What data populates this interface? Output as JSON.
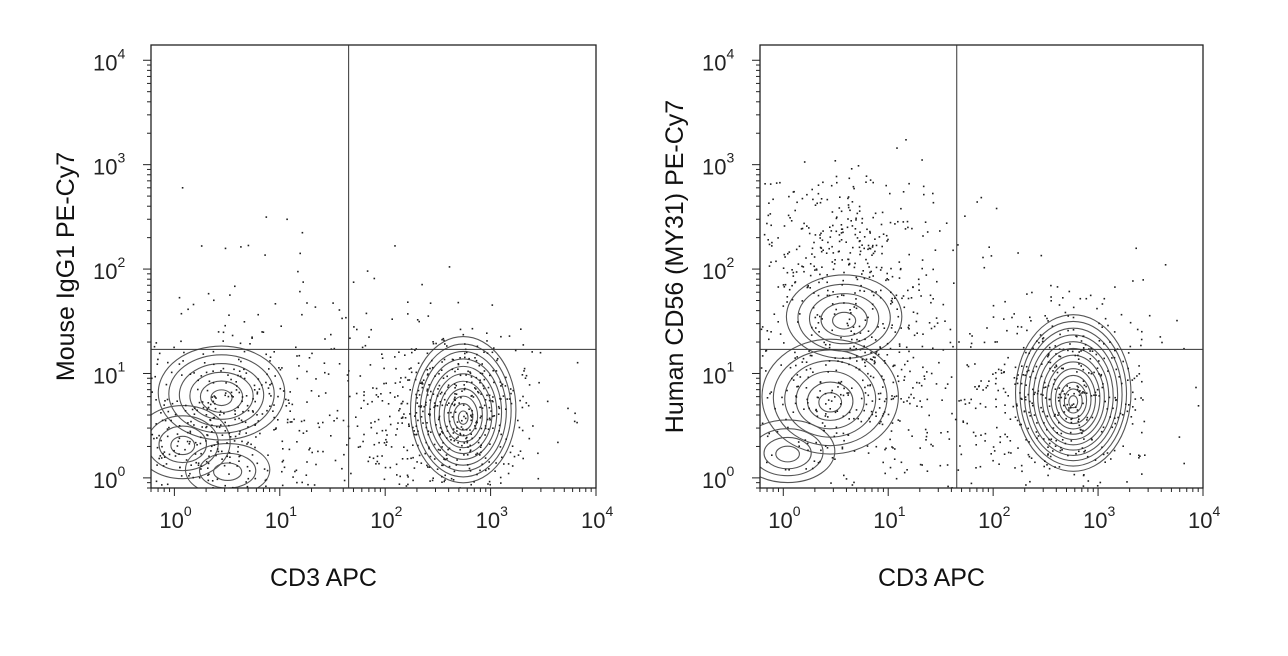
{
  "chart_data": [
    {
      "type": "flow-cytometry contour plot",
      "xlabel": "CD3 APC",
      "ylabel": "Mouse IgG1 PE-Cy7",
      "x_scale": "log",
      "y_scale": "log",
      "xlim": [
        0.6,
        10000
      ],
      "ylim": [
        0.8,
        14000
      ],
      "x_ticks": [
        {
          "base": "10",
          "exp": "0"
        },
        {
          "base": "10",
          "exp": "1"
        },
        {
          "base": "10",
          "exp": "2"
        },
        {
          "base": "10",
          "exp": "3"
        },
        {
          "base": "10",
          "exp": "4"
        }
      ],
      "y_ticks": [
        {
          "base": "10",
          "exp": "0"
        },
        {
          "base": "10",
          "exp": "1"
        },
        {
          "base": "10",
          "exp": "2"
        },
        {
          "base": "10",
          "exp": "3"
        },
        {
          "base": "10",
          "exp": "4"
        }
      ],
      "quadrant_gate": {
        "x": 45,
        "y": 17
      },
      "populations": [
        {
          "x": 2.8,
          "y": 6.5,
          "rx_dec": 0.6,
          "ry_dec": 0.45,
          "levels": 6
        },
        {
          "x": 1.2,
          "y": 2.2,
          "rx_dec": 0.45,
          "ry_dec": 0.35,
          "levels": 4
        },
        {
          "x": 3.2,
          "y": 1.2,
          "rx_dec": 0.4,
          "ry_dec": 0.25,
          "levels": 3
        },
        {
          "x": 550,
          "y": 4.5,
          "rx_dec": 0.5,
          "ry_dec": 0.7,
          "levels": 11
        }
      ],
      "scatter_regions": [
        {
          "x": 3,
          "y": 3,
          "sx_dec": 0.55,
          "sy_dec": 0.4,
          "n": 420
        },
        {
          "x": 400,
          "y": 4,
          "sx_dec": 0.45,
          "sy_dec": 0.45,
          "n": 560
        },
        {
          "x": 8,
          "y": 30,
          "sx_dec": 0.7,
          "sy_dec": 0.5,
          "n": 80
        }
      ]
    },
    {
      "type": "flow-cytometry contour plot",
      "xlabel": "CD3 APC",
      "ylabel": "Human CD56 (MY31) PE-Cy7",
      "x_scale": "log",
      "y_scale": "log",
      "xlim": [
        0.6,
        10000
      ],
      "ylim": [
        0.8,
        14000
      ],
      "x_ticks": [
        {
          "base": "10",
          "exp": "0"
        },
        {
          "base": "10",
          "exp": "1"
        },
        {
          "base": "10",
          "exp": "2"
        },
        {
          "base": "10",
          "exp": "3"
        },
        {
          "base": "10",
          "exp": "4"
        }
      ],
      "y_ticks": [
        {
          "base": "10",
          "exp": "0"
        },
        {
          "base": "10",
          "exp": "1"
        },
        {
          "base": "10",
          "exp": "2"
        },
        {
          "base": "10",
          "exp": "3"
        },
        {
          "base": "10",
          "exp": "4"
        }
      ],
      "quadrant_gate": {
        "x": 45,
        "y": 17
      },
      "populations": [
        {
          "x": 3.8,
          "y": 35,
          "rx_dec": 0.55,
          "ry_dec": 0.4,
          "levels": 5
        },
        {
          "x": 2.8,
          "y": 6,
          "rx_dec": 0.65,
          "ry_dec": 0.55,
          "levels": 6
        },
        {
          "x": 1.1,
          "y": 1.8,
          "rx_dec": 0.45,
          "ry_dec": 0.3,
          "levels": 4
        },
        {
          "x": 580,
          "y": 6.5,
          "rx_dec": 0.55,
          "ry_dec": 0.75,
          "levels": 13
        }
      ],
      "scatter_regions": [
        {
          "x": 3,
          "y": 200,
          "sx_dec": 0.55,
          "sy_dec": 0.35,
          "n": 300
        },
        {
          "x": 4,
          "y": 10,
          "sx_dec": 0.6,
          "sy_dec": 0.55,
          "n": 500
        },
        {
          "x": 450,
          "y": 6,
          "sx_dec": 0.5,
          "sy_dec": 0.5,
          "n": 480
        }
      ]
    }
  ]
}
